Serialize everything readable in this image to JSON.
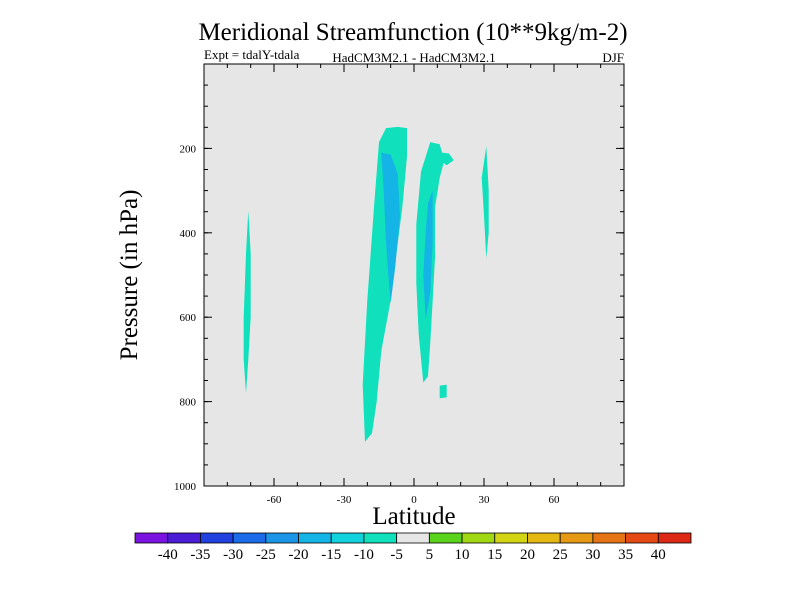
{
  "chart_data": {
    "type": "contour",
    "title": "Meridional Streamfunction (10**9kg/m-2)",
    "subtitle_left": "Expt = tdalY-tdala",
    "subtitle_center": "HadCM3M2.1 - HadCM3M2.1",
    "subtitle_right": "DJF",
    "xlabel": "Latitude",
    "ylabel": "Pressure (in hPa)",
    "xlim": [
      -90,
      90
    ],
    "ylim": [
      1000,
      0
    ],
    "y_reversed": true,
    "x_ticks": [
      {
        "value": -60,
        "label": "-60"
      },
      {
        "value": -30,
        "label": "-30"
      },
      {
        "value": 0,
        "label": "0"
      },
      {
        "value": 30,
        "label": "30"
      },
      {
        "value": 60,
        "label": "60"
      }
    ],
    "y_ticks": [
      {
        "value": 200,
        "label": "200"
      },
      {
        "value": 400,
        "label": "400"
      },
      {
        "value": 600,
        "label": "600"
      },
      {
        "value": 800,
        "label": "800"
      },
      {
        "value": 1000,
        "label": "1000"
      }
    ],
    "background_color": "#e6e6e6",
    "colorbar": {
      "colors": [
        "#7b14e0",
        "#4a1cd6",
        "#2040e0",
        "#1c6be8",
        "#1a95e8",
        "#14b4e6",
        "#12d2dd",
        "#10e0bc",
        "#e6e6e6",
        "#5ad31c",
        "#a0d814",
        "#d2d414",
        "#e6b814",
        "#e69a14",
        "#e67414",
        "#e64a14",
        "#dc2814"
      ],
      "labels": [
        "-40",
        "-35",
        "-30",
        "-25",
        "-20",
        "-15",
        "-10",
        "-5",
        "5",
        "10",
        "15",
        "20",
        "25",
        "30",
        "35",
        "40"
      ]
    },
    "regions": [
      {
        "name": "main-negative-cell",
        "level": "-10 to -5",
        "color": "#10e0bc",
        "polygon": [
          [
            -21,
            895
          ],
          [
            -22,
            760
          ],
          [
            -20,
            560
          ],
          [
            -17,
            330
          ],
          [
            -15,
            185
          ],
          [
            -12,
            152
          ],
          [
            -7,
            149
          ],
          [
            -3,
            152
          ],
          [
            -3,
            220
          ],
          [
            -5,
            340
          ],
          [
            -8,
            470
          ],
          [
            -10,
            560
          ],
          [
            -14,
            680
          ],
          [
            -16,
            800
          ],
          [
            -18,
            875
          ]
        ]
      },
      {
        "name": "main-inner-core",
        "level": "-15 to -10",
        "color": "#14b4e6",
        "polygon": [
          [
            -14,
            210
          ],
          [
            -13,
            300
          ],
          [
            -12,
            420
          ],
          [
            -11,
            500
          ],
          [
            -10,
            565
          ],
          [
            -8,
            480
          ],
          [
            -6,
            360
          ],
          [
            -7,
            260
          ],
          [
            -10,
            215
          ]
        ]
      },
      {
        "name": "east-negative-cell",
        "level": "-10 to -5",
        "color": "#10e0bc",
        "polygon": [
          [
            4,
            755
          ],
          [
            2,
            640
          ],
          [
            1,
            520
          ],
          [
            1,
            380
          ],
          [
            3,
            255
          ],
          [
            7,
            185
          ],
          [
            11,
            190
          ],
          [
            13,
            228
          ],
          [
            11,
            270
          ],
          [
            9,
            340
          ],
          [
            9,
            460
          ],
          [
            8,
            560
          ],
          [
            7,
            660
          ],
          [
            6,
            740
          ]
        ]
      },
      {
        "name": "east-inner-core",
        "level": "-15 to -10",
        "color": "#14b4e6",
        "polygon": [
          [
            5,
            605
          ],
          [
            4,
            500
          ],
          [
            5,
            400
          ],
          [
            6,
            330
          ],
          [
            8,
            300
          ],
          [
            8,
            420
          ],
          [
            7,
            540
          ]
        ]
      },
      {
        "name": "east-small-lobe",
        "level": "-10 to -5",
        "color": "#10e0bc",
        "polygon": [
          [
            12,
            210
          ],
          [
            15,
            212
          ],
          [
            17,
            228
          ],
          [
            14,
            240
          ],
          [
            12,
            232
          ]
        ]
      },
      {
        "name": "western-thin-band",
        "level": "-10 to -5",
        "color": "#10e0bc",
        "polygon": [
          [
            -72,
            780
          ],
          [
            -73,
            700
          ],
          [
            -73,
            600
          ],
          [
            -72,
            450
          ],
          [
            -71,
            348
          ],
          [
            -70,
            450
          ],
          [
            -70,
            600
          ],
          [
            -71,
            700
          ]
        ]
      },
      {
        "name": "patch-30n",
        "level": "-10 to -5",
        "color": "#10e0bc",
        "polygon": [
          [
            31,
            460
          ],
          [
            30,
            360
          ],
          [
            29,
            270
          ],
          [
            31,
            195
          ],
          [
            32,
            300
          ],
          [
            32,
            400
          ]
        ]
      },
      {
        "name": "patch-low-level",
        "level": "-10 to -5",
        "color": "#10e0bc",
        "polygon": [
          [
            11,
            762
          ],
          [
            14,
            760
          ],
          [
            14,
            790
          ],
          [
            11,
            792
          ]
        ]
      }
    ]
  }
}
